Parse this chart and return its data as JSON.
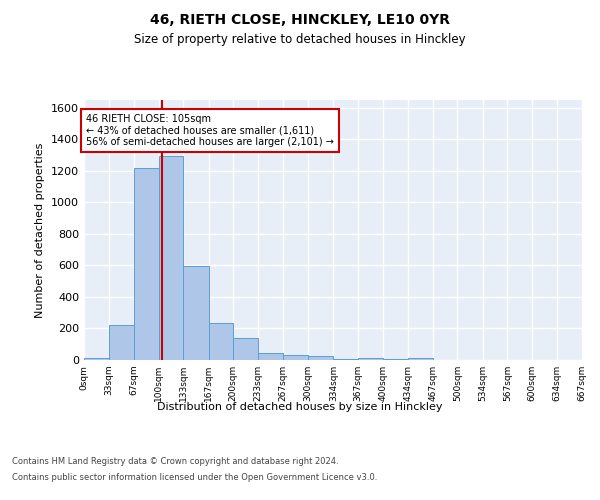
{
  "title1": "46, RIETH CLOSE, HINCKLEY, LE10 0YR",
  "title2": "Size of property relative to detached houses in Hinckley",
  "xlabel": "Distribution of detached houses by size in Hinckley",
  "ylabel": "Number of detached properties",
  "bin_edges": [
    0,
    33,
    67,
    100,
    133,
    167,
    200,
    233,
    267,
    300,
    334,
    367,
    400,
    434,
    467,
    500,
    534,
    567,
    600,
    634,
    667
  ],
  "bar_heights": [
    10,
    220,
    1220,
    1295,
    595,
    235,
    140,
    45,
    30,
    25,
    5,
    15,
    5,
    15,
    0,
    0,
    0,
    0,
    0,
    0
  ],
  "bar_color": "#aec6e8",
  "bar_edge_color": "#5a9fd4",
  "property_size": 105,
  "vline_color": "#cc0000",
  "annotation_text": "46 RIETH CLOSE: 105sqm\n← 43% of detached houses are smaller (1,611)\n56% of semi-detached houses are larger (2,101) →",
  "annotation_box_color": "#ffffff",
  "annotation_box_edge": "#cc0000",
  "ylim": [
    0,
    1650
  ],
  "yticks": [
    0,
    200,
    400,
    600,
    800,
    1000,
    1200,
    1400,
    1600
  ],
  "bg_color": "#e8eef7",
  "grid_color": "#ffffff",
  "footer_line1": "Contains HM Land Registry data © Crown copyright and database right 2024.",
  "footer_line2": "Contains public sector information licensed under the Open Government Licence v3.0.",
  "tick_labels": [
    "0sqm",
    "33sqm",
    "67sqm",
    "100sqm",
    "133sqm",
    "167sqm",
    "200sqm",
    "233sqm",
    "267sqm",
    "300sqm",
    "334sqm",
    "367sqm",
    "400sqm",
    "434sqm",
    "467sqm",
    "500sqm",
    "534sqm",
    "567sqm",
    "600sqm",
    "634sqm",
    "667sqm"
  ]
}
